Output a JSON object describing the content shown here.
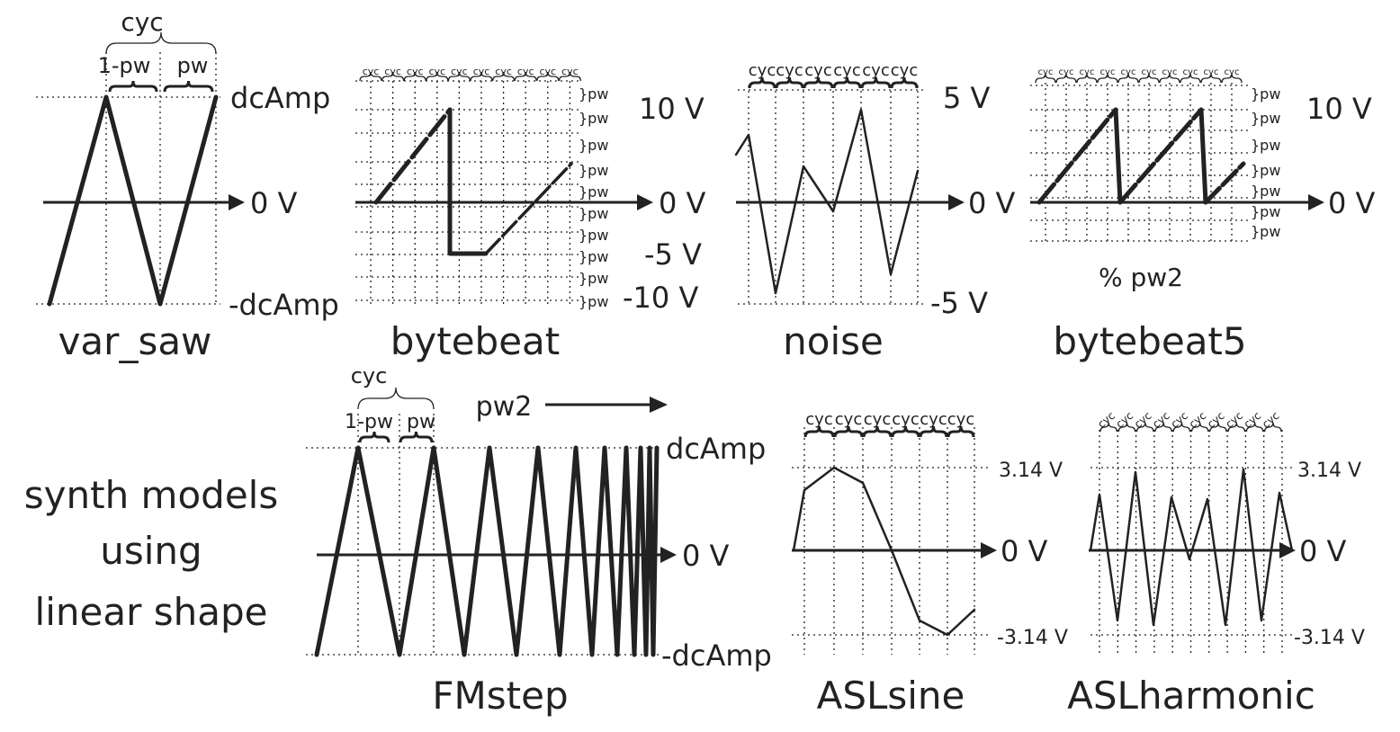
{
  "panels": {
    "var_saw": {
      "title": "var_saw",
      "cyc": "cyc",
      "one_minus_pw": "1-pw",
      "pw": "pw",
      "top": "dcAmp",
      "mid": "0 V",
      "bottom": "-dcAmp"
    },
    "bytebeat": {
      "title": "bytebeat",
      "cyc": "cyc",
      "pw": "}pw",
      "v_top": "10 V",
      "v_mid": "0 V",
      "v_neg5": "-5 V",
      "v_bot": "-10 V"
    },
    "noise": {
      "title": "noise",
      "cyc": "cyc",
      "v_top": "5 V",
      "v_mid": "0 V",
      "v_bot": "-5 V"
    },
    "bytebeat5": {
      "title": "bytebeat5",
      "cyc": "cyc",
      "pw": "}pw",
      "note": "% pw2",
      "v_top": "10 V",
      "v_mid": "0 V"
    },
    "fmstep": {
      "title": "FMstep",
      "cyc": "cyc",
      "one_minus_pw": "1-pw",
      "pw": "pw",
      "pw2": "pw2",
      "top": "dcAmp",
      "mid": "0 V",
      "bottom": "-dcAmp"
    },
    "aslsine": {
      "title": "ASLsine",
      "cyc": "cyc",
      "v_top": "3.14 V",
      "v_mid": "0 V",
      "v_bot": "-3.14 V"
    },
    "aslharmonic": {
      "title": "ASLharmonic",
      "cyc": "cyc",
      "v_top": "3.14 V",
      "v_mid": "0 V",
      "v_bot": "-3.14 V"
    }
  },
  "caption_lines": [
    "synth models",
    "using",
    "linear shape"
  ],
  "colors": {
    "ink": "#222222"
  }
}
